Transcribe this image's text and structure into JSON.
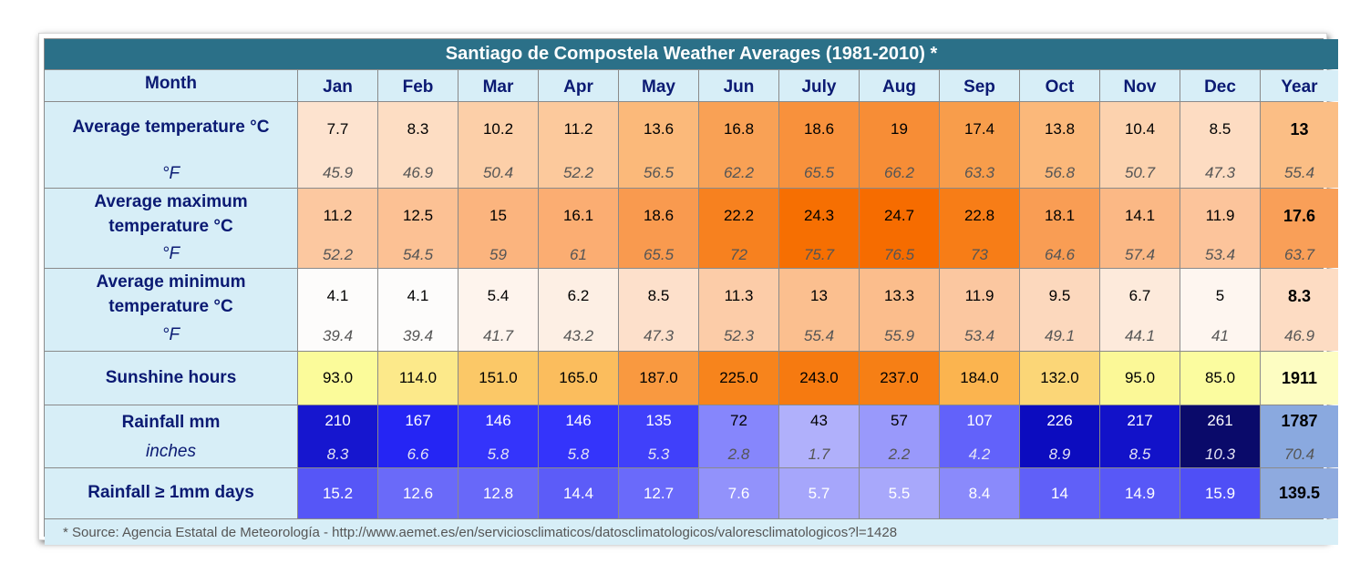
{
  "chart_data": {
    "type": "table",
    "title": "Santiago de Compostela Weather Averages (1981-2010) *",
    "header_label": "Month",
    "columns": [
      "Jan",
      "Feb",
      "Mar",
      "Apr",
      "May",
      "Jun",
      "July",
      "Aug",
      "Sep",
      "Oct",
      "Nov",
      "Dec",
      "Year"
    ],
    "rows": [
      {
        "label": "Average temperature °C",
        "sub_label": "°F",
        "values": [
          "7.7",
          "8.3",
          "10.2",
          "11.2",
          "13.6",
          "16.8",
          "18.6",
          "19",
          "17.4",
          "13.8",
          "10.4",
          "8.5",
          "13"
        ],
        "sub_values": [
          "45.9",
          "46.9",
          "50.4",
          "52.2",
          "56.5",
          "62.2",
          "65.5",
          "66.2",
          "63.3",
          "56.8",
          "50.7",
          "47.3",
          "55.4"
        ],
        "colors": [
          "#fde3cf",
          "#fdddc3",
          "#fccfa8",
          "#fcc99c",
          "#fbb97a",
          "#f9a155",
          "#f8913c",
          "#f78d36",
          "#f89d4b",
          "#fbb87a",
          "#fcd2ae",
          "#fddcc2",
          "#fbbe85"
        ]
      },
      {
        "label": "Average maximum temperature °C",
        "sub_label": "°F",
        "values": [
          "11.2",
          "12.5",
          "15",
          "16.1",
          "18.6",
          "22.2",
          "24.3",
          "24.7",
          "22.8",
          "18.1",
          "14.1",
          "11.9",
          "17.6"
        ],
        "sub_values": [
          "52.2",
          "54.5",
          "59",
          "61",
          "65.5",
          "72",
          "75.7",
          "76.5",
          "73",
          "64.6",
          "57.4",
          "53.4",
          "63.7"
        ],
        "colors": [
          "#fcc8a0",
          "#fcc194",
          "#fbb47e",
          "#fbad72",
          "#f99a4f",
          "#f7811f",
          "#f66f02",
          "#f66c00",
          "#f77d17",
          "#f99d54",
          "#fbb885",
          "#fcc49b",
          "#f99f58"
        ]
      },
      {
        "label": "Average minimum temperature °C",
        "sub_label": "°F",
        "values": [
          "4.1",
          "4.1",
          "5.4",
          "6.2",
          "8.5",
          "11.3",
          "13",
          "13.3",
          "11.9",
          "9.5",
          "6.7",
          "5",
          "8.3"
        ],
        "sub_values": [
          "39.4",
          "39.4",
          "41.7",
          "43.2",
          "47.3",
          "52.3",
          "55.4",
          "55.9",
          "53.4",
          "49.1",
          "44.1",
          "41",
          "46.9"
        ],
        "colors": [
          "#fdfcfb",
          "#fdfcfb",
          "#fef4ed",
          "#fdefe4",
          "#fde0cb",
          "#fccca8",
          "#fbbf8f",
          "#fbbd8c",
          "#fbc7a0",
          "#fcd8bd",
          "#fdeadb",
          "#fef6f0",
          "#fddcc3"
        ]
      },
      {
        "label": "Sunshine hours",
        "values": [
          "93.0",
          "114.0",
          "151.0",
          "165.0",
          "187.0",
          "225.0",
          "243.0",
          "237.0",
          "184.0",
          "132.0",
          "95.0",
          "85.0",
          "1911"
        ],
        "colors": [
          "#fbfb9a",
          "#fce98a",
          "#fbc867",
          "#fbbd5d",
          "#f99940",
          "#f7841c",
          "#f67a10",
          "#f67f15",
          "#fbb44f",
          "#fbd677",
          "#fbf897",
          "#fbfc9f",
          "#fdfdc2"
        ]
      },
      {
        "label": "Rainfall mm",
        "sub_label": "inches",
        "values": [
          "210",
          "167",
          "146",
          "146",
          "135",
          "72",
          "43",
          "57",
          "107",
          "226",
          "217",
          "261",
          "1787"
        ],
        "sub_values": [
          "8.3",
          "6.6",
          "5.8",
          "5.8",
          "5.3",
          "2.8",
          "1.7",
          "2.2",
          "4.2",
          "8.9",
          "8.5",
          "10.3",
          "70.4"
        ],
        "colors": [
          "#1616cf",
          "#2525f4",
          "#3434fb",
          "#3434fb",
          "#4040fa",
          "#8686fc",
          "#b0b0fb",
          "#9999fb",
          "#6262fa",
          "#0c0cbf",
          "#1212c9",
          "#0a0a6a",
          "#8aa9df"
        ]
      },
      {
        "label": "Rainfall ≥ 1mm days",
        "values": [
          "15.2",
          "12.6",
          "12.8",
          "14.4",
          "12.7",
          "7.6",
          "5.7",
          "5.5",
          "8.4",
          "14",
          "14.9",
          "15.9",
          "139.5"
        ],
        "colors": [
          "#5656f7",
          "#6a6af9",
          "#6868f9",
          "#5c5cf8",
          "#6a6afa",
          "#9292fb",
          "#a6a6fb",
          "#a8a8fb",
          "#8a8afb",
          "#6060f8",
          "#5858f7",
          "#4f4ff6",
          "#8eaadf"
        ]
      }
    ],
    "source": "* Source: Agencia Estatal de Meteorología - http://www.aemet.es/en/serviciosclimaticos/datosclimatologicos/valoresclimatologicos?l=1428"
  }
}
